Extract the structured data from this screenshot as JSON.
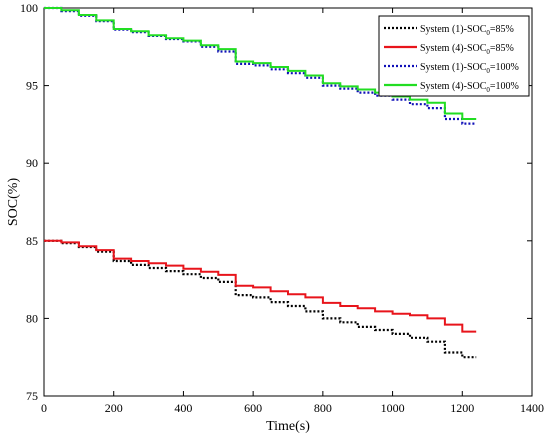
{
  "chart_data": {
    "type": "line",
    "xlabel": "Time(s)",
    "ylabel": "SOC(%)",
    "xlim": [
      0,
      1400
    ],
    "ylim": [
      75,
      100
    ],
    "xticks": [
      0,
      200,
      400,
      600,
      800,
      1000,
      1200,
      1400
    ],
    "yticks": [
      75,
      80,
      85,
      90,
      95,
      100
    ],
    "grid": false,
    "legend_position": "top-right",
    "series": [
      {
        "name": "System (1)-SOC0=85%",
        "label_main": "System (1)-SOC",
        "label_sub": "0",
        "label_tail": "=85%",
        "color": "#000000",
        "style": "dotted",
        "x": [
          0,
          50,
          100,
          150,
          200,
          250,
          300,
          350,
          400,
          450,
          500,
          550,
          600,
          650,
          700,
          750,
          800,
          850,
          900,
          950,
          1000,
          1050,
          1100,
          1150,
          1200,
          1240
        ],
        "y": [
          85.0,
          84.85,
          84.6,
          84.3,
          83.7,
          83.45,
          83.25,
          83.05,
          82.85,
          82.6,
          82.35,
          81.5,
          81.35,
          81.05,
          80.8,
          80.45,
          80.0,
          79.75,
          79.45,
          79.25,
          79.0,
          78.75,
          78.5,
          77.8,
          77.5,
          77.5
        ]
      },
      {
        "name": "System (4)-SOC0=85%",
        "label_main": "System (4)-SOC",
        "label_sub": "0",
        "label_tail": "=85%",
        "color": "#e8141b",
        "style": "solid",
        "x": [
          0,
          50,
          100,
          150,
          200,
          250,
          300,
          350,
          400,
          450,
          500,
          550,
          600,
          650,
          700,
          750,
          800,
          850,
          900,
          950,
          1000,
          1050,
          1100,
          1150,
          1200,
          1240
        ],
        "y": [
          85.0,
          84.9,
          84.65,
          84.4,
          83.85,
          83.7,
          83.55,
          83.4,
          83.2,
          83.0,
          82.8,
          82.1,
          82.0,
          81.75,
          81.55,
          81.35,
          81.0,
          80.8,
          80.65,
          80.45,
          80.3,
          80.2,
          80.0,
          79.6,
          79.15,
          79.15
        ]
      },
      {
        "name": "System (1)-SOC0=100%",
        "label_main": "System (1)-SOC",
        "label_sub": "0",
        "label_tail": "=100%",
        "color": "#1010b8",
        "style": "dotted",
        "x": [
          0,
          50,
          100,
          150,
          200,
          250,
          300,
          350,
          400,
          450,
          500,
          550,
          600,
          650,
          700,
          750,
          800,
          850,
          900,
          950,
          1000,
          1050,
          1100,
          1150,
          1200,
          1240
        ],
        "y": [
          100.0,
          99.8,
          99.5,
          99.15,
          98.6,
          98.45,
          98.2,
          98.0,
          97.85,
          97.5,
          97.2,
          96.4,
          96.3,
          96.05,
          95.8,
          95.5,
          95.0,
          94.8,
          94.55,
          94.35,
          94.1,
          93.8,
          93.55,
          92.85,
          92.55,
          92.55
        ]
      },
      {
        "name": "System (4)-SOC0=100%",
        "label_main": "System (4)-SOC",
        "label_sub": "0",
        "label_tail": "=100%",
        "color": "#22dd22",
        "style": "solid",
        "x": [
          0,
          50,
          100,
          150,
          200,
          250,
          300,
          350,
          400,
          450,
          500,
          550,
          600,
          650,
          700,
          750,
          800,
          850,
          900,
          950,
          1000,
          1050,
          1100,
          1150,
          1200,
          1240
        ],
        "y": [
          100.0,
          99.85,
          99.55,
          99.2,
          98.65,
          98.5,
          98.25,
          98.05,
          97.9,
          97.6,
          97.35,
          96.55,
          96.45,
          96.2,
          95.95,
          95.65,
          95.15,
          94.95,
          94.75,
          94.55,
          94.3,
          94.1,
          93.9,
          93.2,
          92.85,
          92.85
        ]
      }
    ]
  }
}
